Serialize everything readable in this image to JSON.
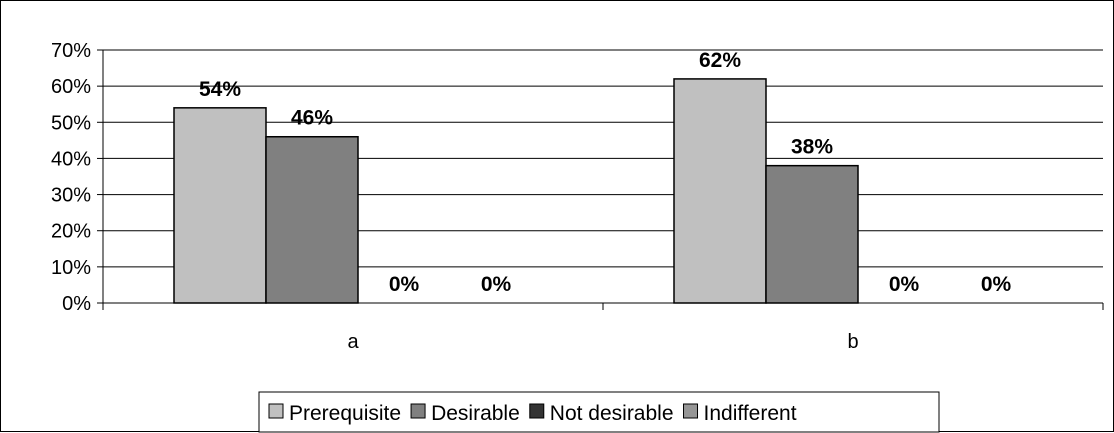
{
  "chart_data": {
    "type": "bar",
    "categories": [
      "a",
      "b"
    ],
    "series": [
      {
        "name": "Prerequisite",
        "values": [
          54,
          62
        ],
        "labels": [
          "54%",
          "62%"
        ],
        "color": "#C0C0C0"
      },
      {
        "name": "Desirable",
        "values": [
          46,
          38
        ],
        "labels": [
          "46%",
          "38%"
        ],
        "color": "#808080"
      },
      {
        "name": "Not desirable",
        "values": [
          0,
          0
        ],
        "labels": [
          "0%",
          "0%"
        ],
        "color": "#333333"
      },
      {
        "name": "Indifferent",
        "values": [
          0,
          0
        ],
        "labels": [
          "0%",
          "0%"
        ],
        "color": "#969696"
      }
    ],
    "yticks": [
      "0%",
      "10%",
      "20%",
      "30%",
      "40%",
      "50%",
      "60%",
      "70%"
    ],
    "ylim": [
      0,
      70
    ],
    "grid": true,
    "legend_position": "bottom",
    "title": "",
    "xlabel": "",
    "ylabel": ""
  }
}
